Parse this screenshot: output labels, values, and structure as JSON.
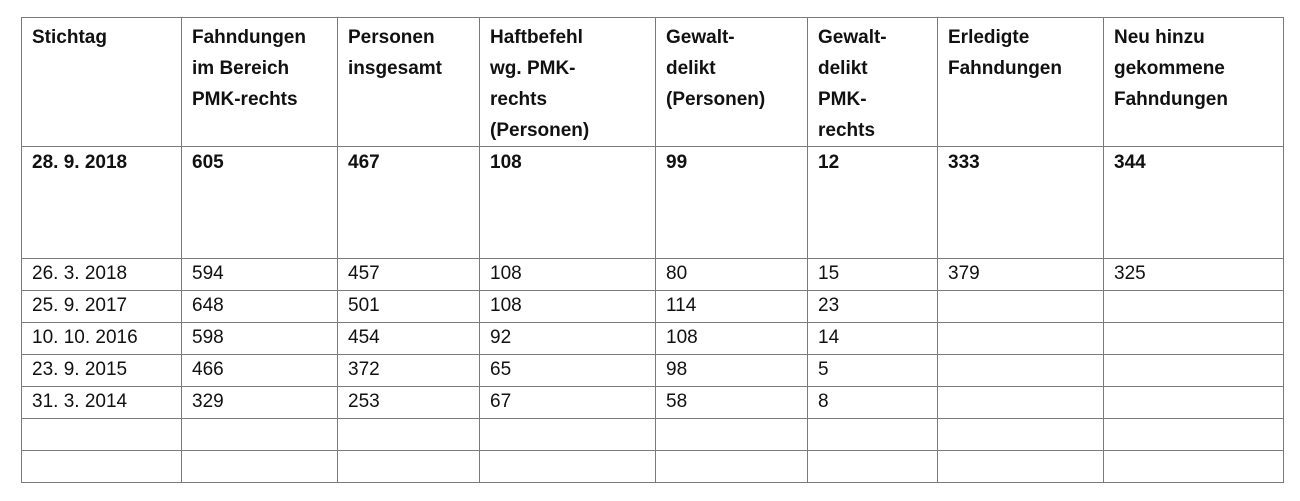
{
  "table": {
    "headers": [
      [
        "Stichtag"
      ],
      [
        "Fahndungen",
        "im Bereich",
        "PMK-rechts"
      ],
      [
        "Personen",
        "insgesamt"
      ],
      [
        "Haftbefehl",
        "wg. PMK-",
        "rechts",
        "(Personen)"
      ],
      [
        "Gewalt-",
        "delikt",
        "(Personen)"
      ],
      [
        "Gewalt-",
        "delikt",
        "PMK-",
        "rechts"
      ],
      [
        "Erledigte",
        "Fahndungen"
      ],
      [
        "Neu hinzu",
        "gekommene",
        "Fahndungen"
      ]
    ],
    "highlight_row": [
      "28. 9. 2018",
      "605",
      "467",
      "108",
      "99",
      "12",
      "333",
      "344"
    ],
    "rows": [
      [
        "26. 3. 2018",
        "594",
        "457",
        "108",
        "80",
        "15",
        "379",
        "325"
      ],
      [
        "25. 9. 2017",
        "648",
        "501",
        "108",
        "114",
        "23",
        "",
        ""
      ],
      [
        "10. 10. 2016",
        "598",
        "454",
        "92",
        "108",
        "14",
        "",
        ""
      ],
      [
        "23. 9. 2015",
        "466",
        "372",
        "65",
        "98",
        "5",
        "",
        ""
      ],
      [
        "31. 3. 2014",
        "329",
        "253",
        "67",
        "58",
        "8",
        "",
        ""
      ],
      [
        "",
        "",
        "",
        "",
        "",
        "",
        "",
        ""
      ],
      [
        "",
        "",
        "",
        "",
        "",
        "",
        "",
        ""
      ]
    ]
  }
}
